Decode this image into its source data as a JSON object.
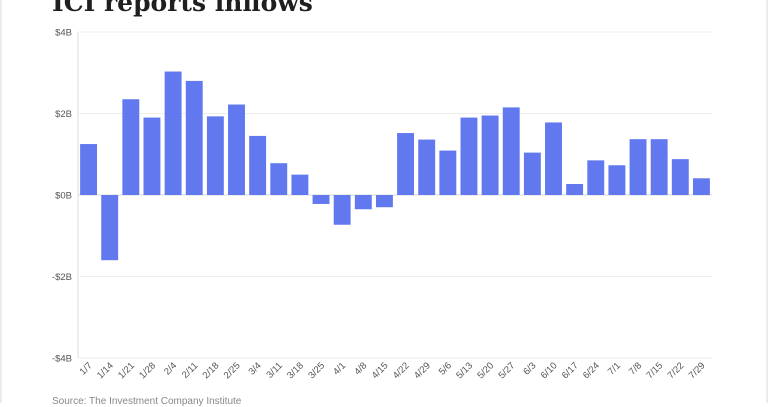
{
  "chart_data": {
    "type": "bar",
    "title": "ICI reports inflows",
    "source": "Source: The Investment Company Institute",
    "categories": [
      "1/7",
      "1/14",
      "1/21",
      "1/28",
      "2/4",
      "2/11",
      "2/18",
      "2/25",
      "3/4",
      "3/11",
      "3/18",
      "3/25",
      "4/1",
      "4/8",
      "4/15",
      "4/22",
      "4/29",
      "5/6",
      "5/13",
      "5/20",
      "5/27",
      "6/3",
      "6/10",
      "6/17",
      "6/24",
      "7/1",
      "7/8",
      "7/15",
      "7/22",
      "7/29"
    ],
    "values": [
      1.25,
      -1.6,
      2.35,
      1.9,
      3.03,
      2.8,
      1.93,
      2.22,
      1.45,
      0.78,
      0.5,
      -0.22,
      -0.73,
      -0.35,
      -0.3,
      1.52,
      1.36,
      1.09,
      1.9,
      1.95,
      2.15,
      1.04,
      1.78,
      0.27,
      0.85,
      0.73,
      1.37,
      1.37,
      0.88,
      0.41
    ],
    "yticks": [
      {
        "value": 4,
        "label": "$4B"
      },
      {
        "value": 2,
        "label": "$2B"
      },
      {
        "value": 0,
        "label": "$0B"
      },
      {
        "value": -2,
        "label": "-$2B"
      },
      {
        "value": -4,
        "label": "-$4B"
      }
    ],
    "ylim": [
      -4,
      4
    ],
    "xlabel": "",
    "ylabel": "",
    "bar_color": "#6178ef",
    "grid": true
  }
}
